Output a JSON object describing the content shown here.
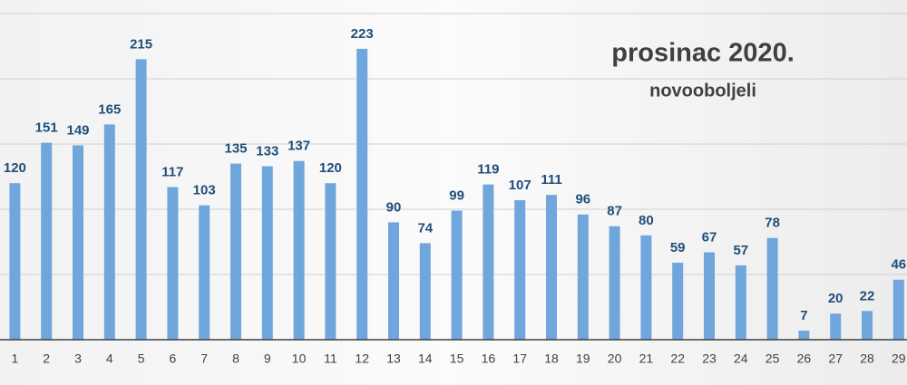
{
  "chart_data": {
    "type": "bar",
    "title": "prosinac 2020.",
    "subtitle": "novooboljeli",
    "categories": [
      "1",
      "2",
      "3",
      "4",
      "5",
      "6",
      "7",
      "8",
      "9",
      "10",
      "11",
      "12",
      "13",
      "14",
      "15",
      "16",
      "17",
      "18",
      "19",
      "20",
      "21",
      "22",
      "23",
      "24",
      "25",
      "26",
      "27",
      "28",
      "29"
    ],
    "values": [
      120,
      151,
      149,
      165,
      215,
      117,
      103,
      135,
      133,
      137,
      120,
      223,
      90,
      74,
      99,
      119,
      107,
      111,
      96,
      87,
      80,
      59,
      67,
      57,
      78,
      7,
      20,
      22,
      46
    ],
    "color": "#6fa6dc",
    "ylim": [
      0,
      250
    ],
    "yticks": [
      0,
      50,
      100,
      150,
      200,
      250
    ],
    "grid": true
  }
}
